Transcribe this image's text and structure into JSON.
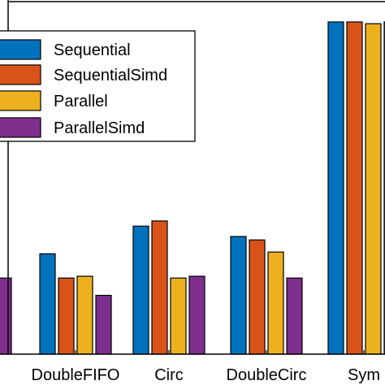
{
  "chart_data": {
    "type": "bar",
    "title": "",
    "xlabel": "",
    "ylabel": "",
    "ylim": [
      0,
      100
    ],
    "grid": false,
    "legend_position": "top-left",
    "categories": [
      "",
      "DoubleFIFO",
      "Circ",
      "DoubleCirc",
      "Sym"
    ],
    "series": [
      {
        "name": "Sequential",
        "color": "#0072BD",
        "values": [
          null,
          29,
          37,
          34,
          96
        ]
      },
      {
        "name": "SequentialSimd",
        "color": "#D95319",
        "values": [
          null,
          22,
          38.5,
          33,
          96
        ]
      },
      {
        "name": "Parallel",
        "color": "#EDB120",
        "values": [
          null,
          22.5,
          22,
          29.5,
          95.5
        ]
      },
      {
        "name": "ParallelSimd",
        "color": "#7E2F8E",
        "values": [
          22,
          17,
          22.5,
          22,
          96
        ]
      }
    ]
  }
}
